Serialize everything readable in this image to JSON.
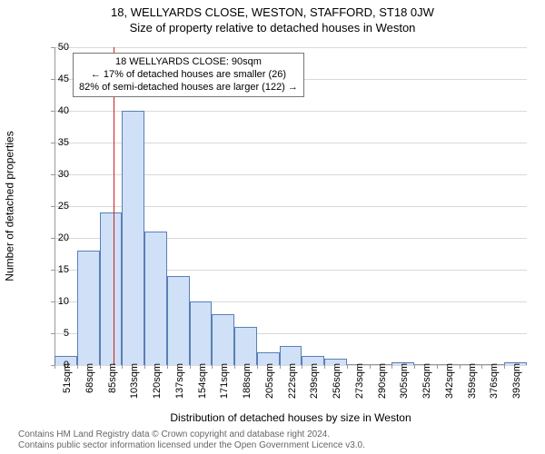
{
  "chart": {
    "type": "histogram",
    "title": "18, WELLYARDS CLOSE, WESTON, STAFFORD, ST18 0JW",
    "subtitle": "Size of property relative to detached houses in Weston",
    "ylabel": "Number of detached properties",
    "xlabel": "Distribution of detached houses by size in Weston",
    "background_color": "#ffffff",
    "grid_color": "#d9d9d9",
    "plot_bg": "#ffffff",
    "ylim": [
      0,
      50
    ],
    "ytick_step": 5,
    "yticks": [
      0,
      5,
      10,
      15,
      20,
      25,
      30,
      35,
      40,
      45,
      50
    ],
    "xtick_labels": [
      "51sqm",
      "68sqm",
      "85sqm",
      "103sqm",
      "120sqm",
      "137sqm",
      "154sqm",
      "171sqm",
      "188sqm",
      "205sqm",
      "222sqm",
      "239sqm",
      "256sqm",
      "273sqm",
      "290sqm",
      "305sqm",
      "325sqm",
      "342sqm",
      "359sqm",
      "376sqm",
      "393sqm"
    ],
    "bars": [
      1.5,
      18,
      24,
      40,
      21,
      14,
      10,
      8,
      6,
      2,
      3,
      1.5,
      1,
      0,
      0,
      0.5,
      0,
      0,
      0,
      0,
      0.5
    ],
    "bar_fill": "#cfe0f7",
    "bar_stroke": "#5a7fb5",
    "bar_width_ratio": 1.0,
    "marker_color": "#cc2222",
    "marker_x_ratio": 0.125,
    "annotation": {
      "line1": "18 WELLYARDS CLOSE: 90sqm",
      "line2": "← 17% of detached houses are smaller (26)",
      "line3": "82% of semi-detached houses are larger (122) →"
    },
    "title_fontsize": 13,
    "label_fontsize": 12,
    "tick_fontsize": 11
  },
  "footer": {
    "line1": "Contains HM Land Registry data © Crown copyright and database right 2024.",
    "line2": "Contains public sector information licensed under the Open Government Licence v3.0."
  }
}
